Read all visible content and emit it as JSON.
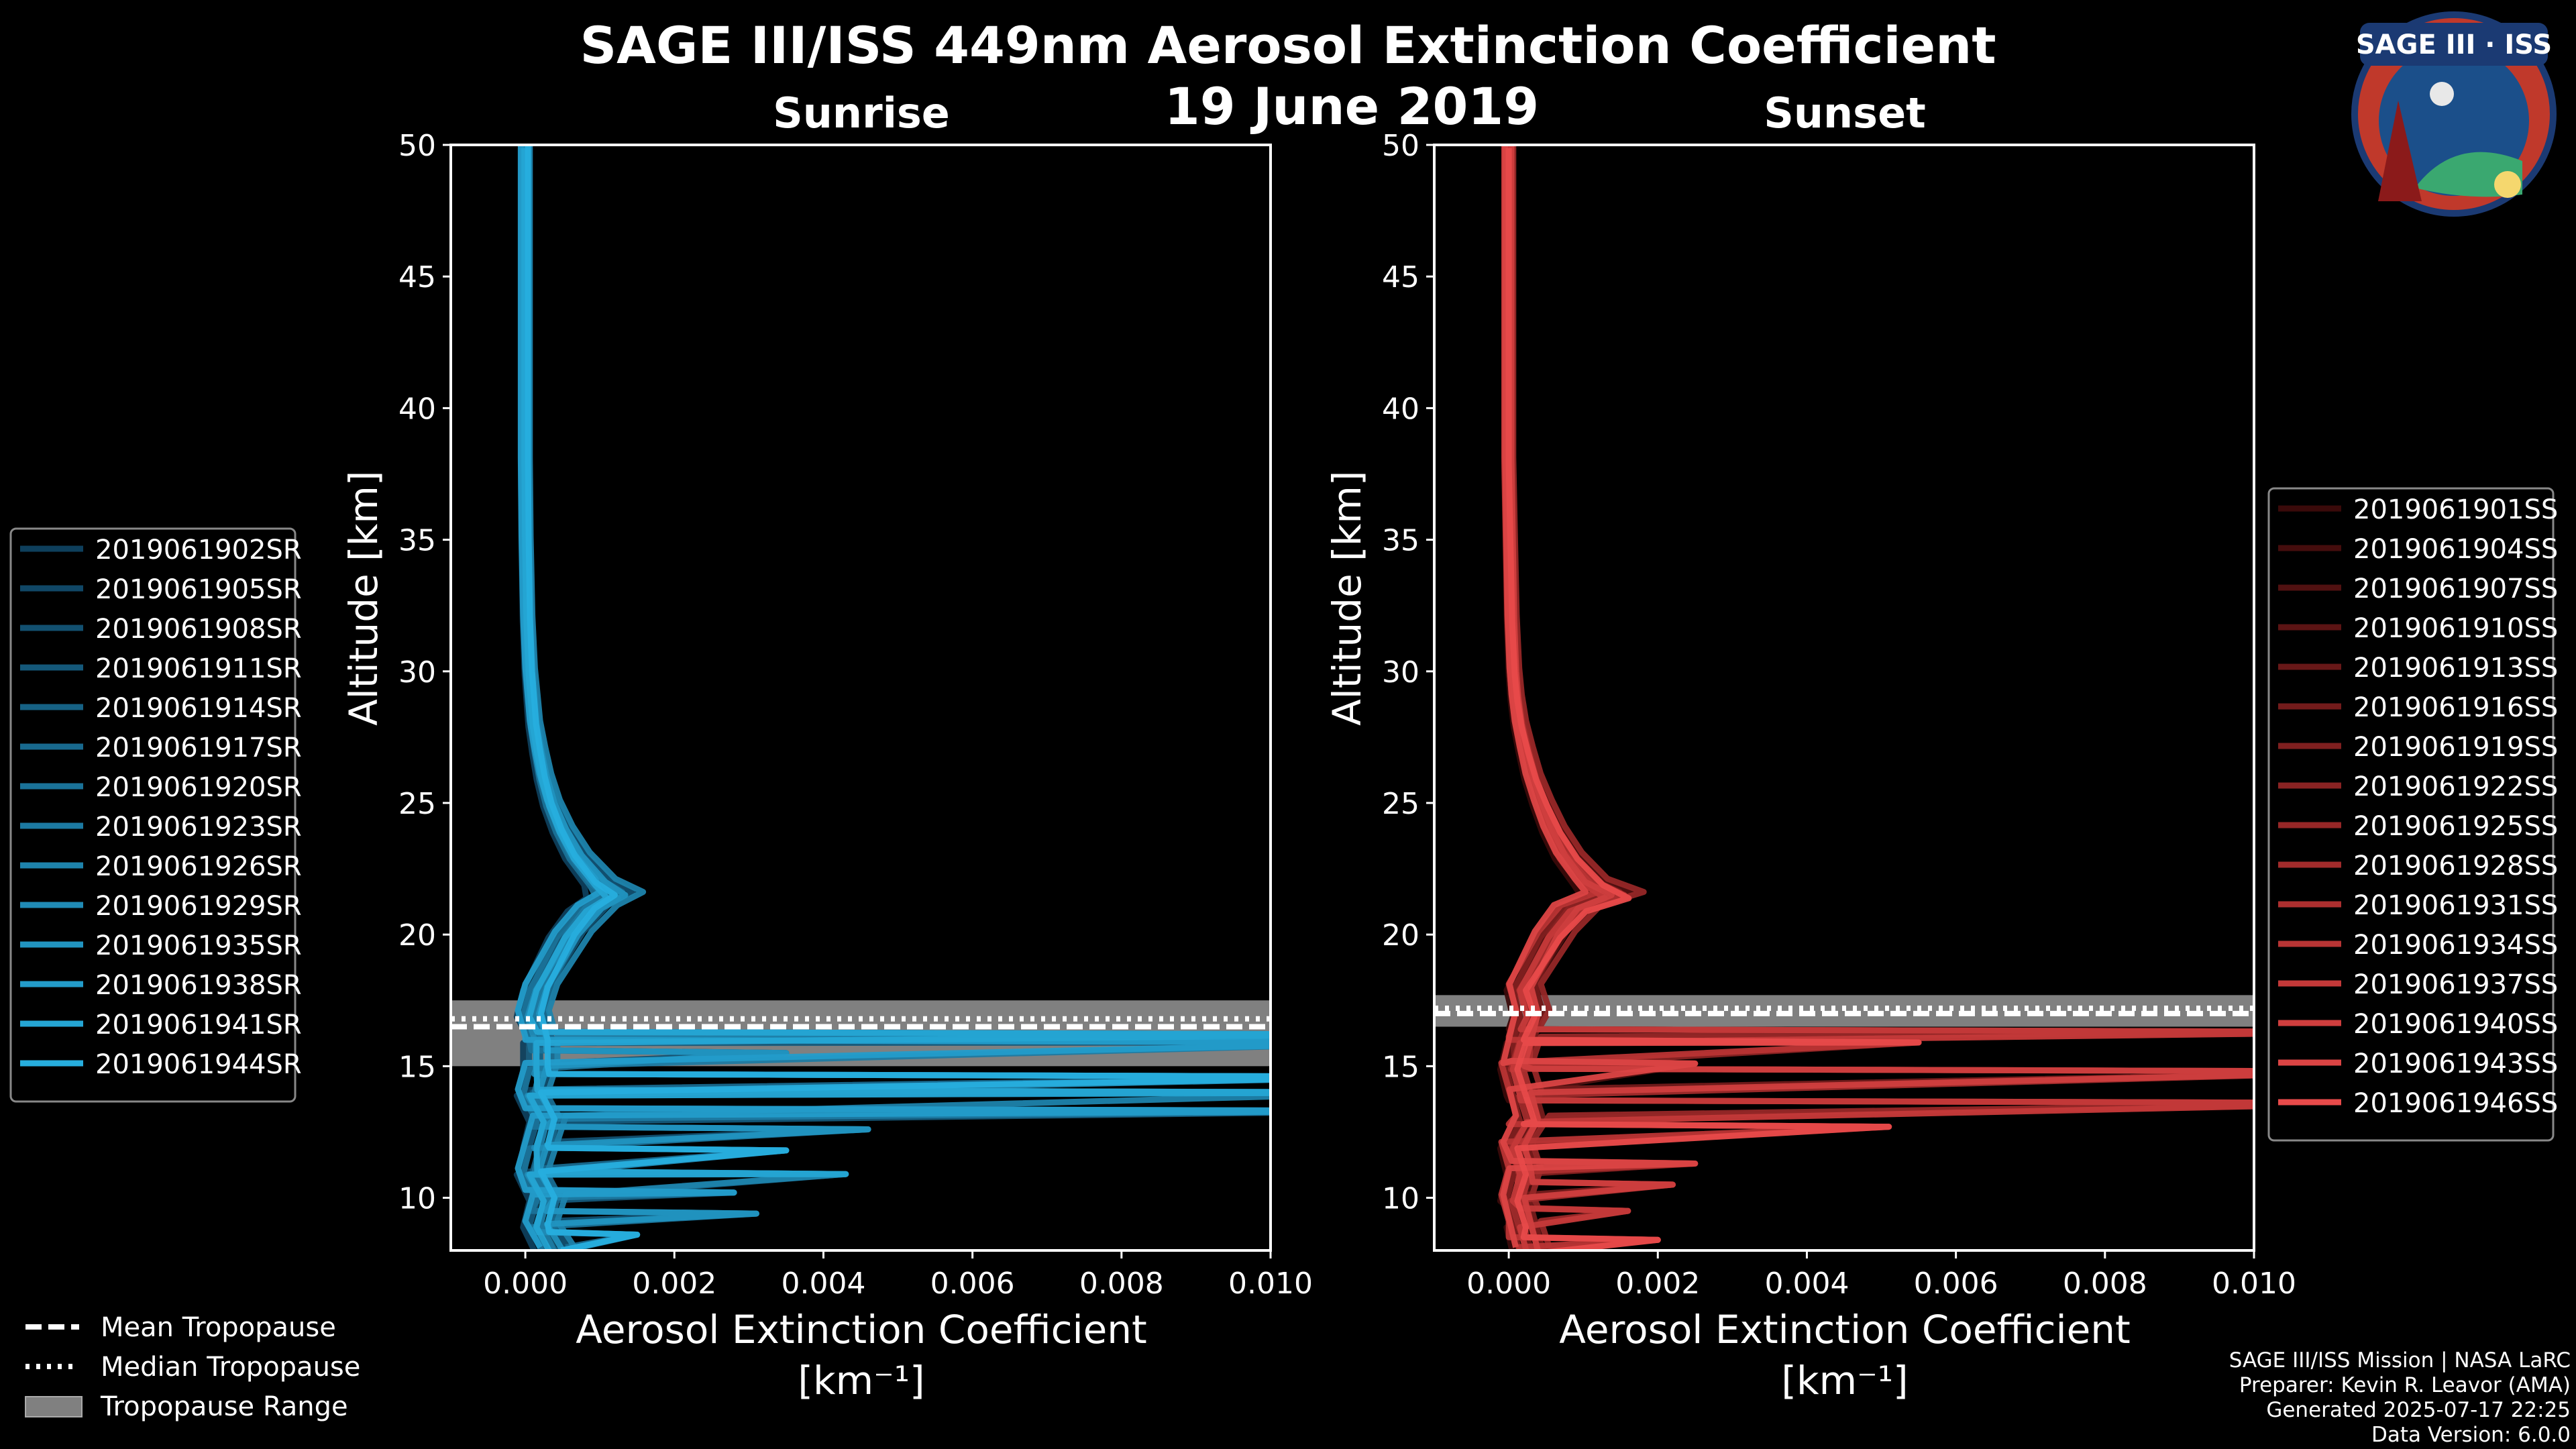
{
  "figure": {
    "title": "SAGE III/ISS 449nm Aerosol Extinction Coefficient",
    "date": "19 June 2019",
    "logo_text": "SAGE III · ISS",
    "footer": [
      "SAGE III/ISS Mission | NASA LaRC",
      "Preparer: Kevin R. Leavor (AMA)",
      "Generated 2025-07-17 22:25",
      "Data Version: 6.0.0"
    ],
    "tropo_legend": [
      {
        "label": "Mean Tropopause",
        "style": "dashed"
      },
      {
        "label": "Median Tropopause",
        "style": "dotted"
      },
      {
        "label": "Tropopause Range",
        "style": "band"
      }
    ],
    "colors": {
      "background": "#000000",
      "sunrise": "#1f8fd6",
      "sunset": "#e8584a",
      "tropo_band": "#808080"
    }
  },
  "chart_data": [
    {
      "type": "line",
      "title": "Sunrise",
      "xlabel": "Aerosol Extinction Coefficient",
      "xunit": "[km⁻¹]",
      "ylabel": "Altitude [km]",
      "xlim": [
        -0.001,
        0.01
      ],
      "ylim": [
        8,
        50
      ],
      "xticks": [
        0.0,
        0.002,
        0.004,
        0.006,
        0.008,
        0.01
      ],
      "xtick_labels": [
        "0.000",
        "0.002",
        "0.004",
        "0.006",
        "0.008",
        "0.010"
      ],
      "yticks": [
        10,
        15,
        20,
        25,
        30,
        35,
        40,
        45,
        50
      ],
      "tropopause": {
        "min": 15.0,
        "max": 17.5,
        "mean": 16.5,
        "median": 16.8
      },
      "series_names": [
        "2019061902SR",
        "2019061905SR",
        "2019061908SR",
        "2019061911SR",
        "2019061914SR",
        "2019061917SR",
        "2019061920SR",
        "2019061923SR",
        "2019061926SR",
        "2019061929SR",
        "2019061935SR",
        "2019061938SR",
        "2019061941SR",
        "2019061944SR"
      ],
      "series_colors": [
        "#0e3f5c",
        "#104766",
        "#125070",
        "#14587a",
        "#166184",
        "#18698e",
        "#1a7298",
        "#1c7aa2",
        "#1e83ac",
        "#208bb6",
        "#2194c0",
        "#239cca",
        "#25a5d4",
        "#27aede"
      ],
      "profile": {
        "alt": [
          8,
          9,
          10,
          11,
          12,
          13,
          14,
          15,
          16,
          17,
          18,
          19,
          20,
          21,
          21.5,
          22,
          23,
          24,
          25,
          26,
          27,
          28,
          29,
          30,
          32,
          35,
          38,
          40,
          45,
          50
        ],
        "ext": [
          0.0004,
          0.0002,
          0.0003,
          0.0001,
          0.0002,
          0.0003,
          0.0001,
          0.0002,
          0.0002,
          0.0001,
          0.0002,
          0.0004,
          0.0006,
          0.0009,
          0.0012,
          0.001,
          0.0007,
          0.0005,
          0.00035,
          0.00025,
          0.00018,
          0.00012,
          9e-05,
          6e-05,
          3e-05,
          1e-05,
          0.0,
          0.0,
          0.0,
          0.0
        ]
      },
      "excursions": [
        {
          "alt": 16.2,
          "ext": 0.012
        },
        {
          "alt": 15.9,
          "ext": 0.012
        },
        {
          "alt": 15.5,
          "ext": 0.0035
        },
        {
          "alt": 14.6,
          "ext": 0.012
        },
        {
          "alt": 14.0,
          "ext": 0.012
        },
        {
          "alt": 13.3,
          "ext": 0.012
        },
        {
          "alt": 12.6,
          "ext": 0.0046
        },
        {
          "alt": 11.8,
          "ext": 0.0035
        },
        {
          "alt": 10.9,
          "ext": 0.0043
        },
        {
          "alt": 10.2,
          "ext": 0.0028
        },
        {
          "alt": 9.4,
          "ext": 0.0031
        },
        {
          "alt": 8.6,
          "ext": 0.0015
        }
      ]
    },
    {
      "type": "line",
      "title": "Sunset",
      "xlabel": "Aerosol Extinction Coefficient",
      "xunit": "[km⁻¹]",
      "ylabel": "Altitude [km]",
      "xlim": [
        -0.001,
        0.01
      ],
      "ylim": [
        8,
        50
      ],
      "xticks": [
        0.0,
        0.002,
        0.004,
        0.006,
        0.008,
        0.01
      ],
      "xtick_labels": [
        "0.000",
        "0.002",
        "0.004",
        "0.006",
        "0.008",
        "0.010"
      ],
      "yticks": [
        10,
        15,
        20,
        25,
        30,
        35,
        40,
        45,
        50
      ],
      "tropopause": {
        "min": 16.5,
        "max": 17.7,
        "mean": 17.0,
        "median": 17.2
      },
      "series_names": [
        "2019061901SS",
        "2019061904SS",
        "2019061907SS",
        "2019061910SS",
        "2019061913SS",
        "2019061916SS",
        "2019061919SS",
        "2019061922SS",
        "2019061925SS",
        "2019061928SS",
        "2019061931SS",
        "2019061934SS",
        "2019061937SS",
        "2019061940SS",
        "2019061943SS",
        "2019061946SS"
      ],
      "series_colors": [
        "#3a0a0a",
        "#450d0d",
        "#511111",
        "#5c1414",
        "#681818",
        "#731b1b",
        "#7f1f1f",
        "#8a2323",
        "#962727",
        "#a12b2b",
        "#ad2f2f",
        "#b83434",
        "#c43939",
        "#cf3e3e",
        "#db4444",
        "#e84a4a"
      ],
      "profile": {
        "alt": [
          8,
          9,
          10,
          11,
          12,
          13,
          14,
          15,
          16,
          17,
          18,
          19,
          20,
          21,
          21.5,
          22,
          23,
          24,
          25,
          26,
          27,
          28,
          29,
          30,
          32,
          35,
          38,
          40,
          45,
          50
        ],
        "ext": [
          0.0003,
          0.0002,
          0.0001,
          0.0002,
          0.0001,
          0.0003,
          0.0002,
          0.0001,
          0.0002,
          0.0003,
          0.0002,
          0.0004,
          0.0006,
          0.0009,
          0.0014,
          0.0011,
          0.0008,
          0.0006,
          0.00045,
          0.00032,
          0.00023,
          0.00015,
          0.0001,
          7e-05,
          4e-05,
          2e-05,
          0.0,
          0.0,
          0.0,
          0.0
        ]
      },
      "excursions": [
        {
          "alt": 16.3,
          "ext": 0.012
        },
        {
          "alt": 15.9,
          "ext": 0.0055
        },
        {
          "alt": 15.1,
          "ext": 0.0025
        },
        {
          "alt": 14.8,
          "ext": 0.012
        },
        {
          "alt": 13.6,
          "ext": 0.012
        },
        {
          "alt": 12.7,
          "ext": 0.0051
        },
        {
          "alt": 11.3,
          "ext": 0.0025
        },
        {
          "alt": 10.5,
          "ext": 0.0022
        },
        {
          "alt": 9.5,
          "ext": 0.0016
        },
        {
          "alt": 8.4,
          "ext": 0.002
        }
      ]
    }
  ]
}
